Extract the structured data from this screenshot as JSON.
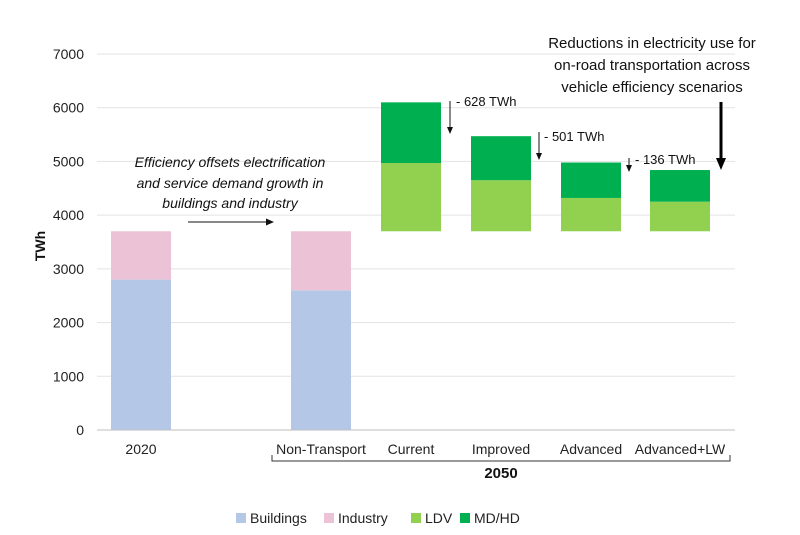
{
  "chart_data": {
    "type": "bar",
    "stacked": true,
    "ylabel": "TWh",
    "ylim": [
      0,
      7000
    ],
    "yticks": [
      0,
      1000,
      2000,
      3000,
      4000,
      5000,
      6000,
      7000
    ],
    "grid": true,
    "legend_position": "bottom",
    "group_label": "2050",
    "categories": [
      "2020",
      "Non-Transport",
      "Current",
      "Improved",
      "Advanced",
      "Advanced+LW"
    ],
    "series": [
      {
        "name": "Buildings",
        "color": "#b4c7e7",
        "values": [
          2800,
          2600,
          0,
          0,
          0,
          0
        ],
        "base": [
          0,
          0,
          0,
          0,
          0,
          0
        ]
      },
      {
        "name": "Industry",
        "color": "#ecc3d6",
        "values": [
          900,
          1100,
          0,
          0,
          0,
          0
        ],
        "base": [
          2800,
          2600,
          0,
          0,
          0,
          0
        ]
      },
      {
        "name": "LDV",
        "color": "#92d050",
        "values": [
          0,
          0,
          1270,
          950,
          620,
          550
        ],
        "base": [
          0,
          0,
          3700,
          3700,
          3700,
          3700
        ]
      },
      {
        "name": "MD/HD",
        "color": "#00b050",
        "values": [
          0,
          0,
          1130,
          820,
          660,
          590
        ],
        "base": [
          0,
          0,
          4970,
          4650,
          4320,
          4250
        ]
      }
    ],
    "deltas": [
      {
        "label": "- 628 TWh",
        "from_category": "Current",
        "to_category": "Improved"
      },
      {
        "label": "- 501 TWh",
        "from_category": "Improved",
        "to_category": "Advanced"
      },
      {
        "label": "- 136 TWh",
        "from_category": "Advanced",
        "to_category": "Advanced+LW"
      }
    ],
    "annotations": {
      "efficiency": [
        "Efficiency offsets electrification",
        "and service demand growth in",
        "buildings and industry"
      ],
      "callout": [
        "Reductions in electricity use for",
        "on-road transportation across",
        "vehicle efficiency scenarios"
      ]
    }
  }
}
